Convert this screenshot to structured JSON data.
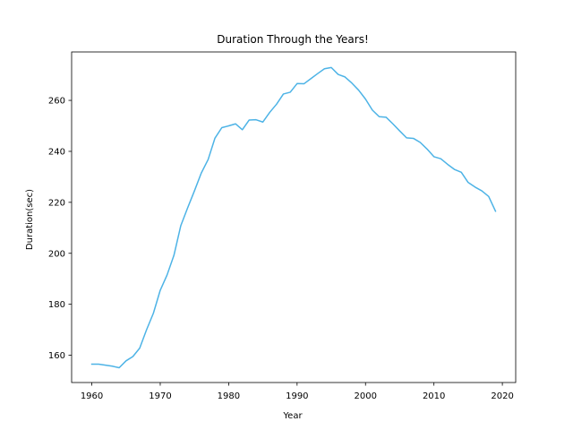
{
  "chart_data": {
    "type": "line",
    "title": "Duration Through the Years!",
    "xlabel": "Year",
    "ylabel": "Duration(sec)",
    "xlim": [
      1957.05,
      2021.95
    ],
    "ylim": [
      149.3,
      279.0
    ],
    "xticks": [
      1960,
      1970,
      1980,
      1990,
      2000,
      2010,
      2020
    ],
    "yticks": [
      160,
      180,
      200,
      220,
      240,
      260
    ],
    "grid": false,
    "line_color": "#4db3e6",
    "series": [
      {
        "x": [
          1960,
          1961,
          1962,
          1963,
          1964,
          1965,
          1966,
          1967,
          1968,
          1969,
          1970,
          1971,
          1972,
          1973,
          1974,
          1975,
          1976,
          1977,
          1978,
          1979,
          1980,
          1981,
          1982,
          1983,
          1984,
          1985,
          1986,
          1987,
          1988,
          1989,
          1990,
          1991,
          1992,
          1993,
          1994,
          1995,
          1996,
          1997,
          1998,
          1999,
          2000,
          2001,
          2002,
          2003,
          2004,
          2005,
          2006,
          2007,
          2008,
          2009,
          2010,
          2011,
          2012,
          2013,
          2014,
          2015,
          2016,
          2017,
          2018,
          2019
        ],
        "y": [
          156.5,
          156.5,
          156.1,
          155.7,
          155.1,
          157.8,
          159.5,
          162.8,
          170.0,
          176.5,
          185.5,
          191.5,
          199.2,
          210.8,
          217.8,
          224.5,
          231.5,
          236.8,
          245.2,
          249.3,
          250.0,
          250.8,
          248.5,
          252.3,
          252.4,
          251.5,
          255.3,
          258.5,
          262.5,
          263.2,
          266.6,
          266.5,
          268.5,
          270.5,
          272.4,
          272.9,
          270.2,
          269.2,
          266.8,
          264.0,
          260.5,
          256.2,
          253.6,
          253.4,
          250.8,
          248.0,
          245.3,
          245.1,
          243.5,
          240.9,
          237.9,
          237.1,
          234.9,
          232.9,
          231.8,
          227.8,
          226.0,
          224.5,
          222.3,
          216.5
        ]
      }
    ]
  }
}
